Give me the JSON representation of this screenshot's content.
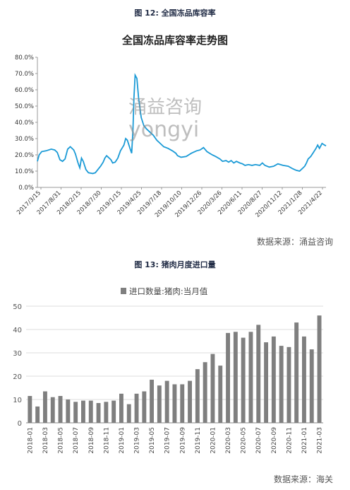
{
  "figure1": {
    "caption": "图 12:  全国冻品库容率",
    "title": "全国冻品库容率走势图",
    "source": "数据来源：涌益咨询",
    "watermark_cn": "涌益咨询",
    "watermark_en": "yongyi"
  },
  "figure2": {
    "caption": "图 13:  猪肉月度进口量",
    "source": "数据来源：海关"
  },
  "chart_data": [
    {
      "type": "line",
      "title": "全国冻品库容率走势图",
      "color": "#1a9ad6",
      "ylim": [
        0,
        80
      ],
      "y_ticks": [
        "0.0%",
        "10.0%",
        "20.0%",
        "30.0%",
        "40.0%",
        "50.0%",
        "60.0%",
        "70.0%",
        "80.0%"
      ],
      "x_tick_labels": [
        "2017/3/15",
        "2017/8/31",
        "2018/2/15",
        "2018/7/30",
        "2019/1/15",
        "2019/4/25",
        "2019/7/18",
        "2019/10/10",
        "2019/12/26",
        "2020/3/26",
        "2020/6/11",
        "2020/8/27",
        "2020/11/12",
        "2021/1/28",
        "2021/4/22"
      ],
      "points": [
        [
          0,
          16
        ],
        [
          0.1,
          20
        ],
        [
          0.25,
          22
        ],
        [
          0.5,
          22.5
        ],
        [
          0.8,
          23.5
        ],
        [
          1.0,
          23
        ],
        [
          1.15,
          21.5
        ],
        [
          1.3,
          17
        ],
        [
          1.45,
          16
        ],
        [
          1.6,
          17.5
        ],
        [
          1.75,
          23.5
        ],
        [
          1.9,
          25
        ],
        [
          2.1,
          23
        ],
        [
          2.2,
          20.5
        ],
        [
          2.35,
          15
        ],
        [
          2.45,
          12
        ],
        [
          2.55,
          18
        ],
        [
          2.65,
          16
        ],
        [
          2.8,
          11
        ],
        [
          2.95,
          9
        ],
        [
          3.2,
          8.5
        ],
        [
          3.35,
          9
        ],
        [
          3.5,
          11
        ],
        [
          3.65,
          13
        ],
        [
          3.8,
          15.5
        ],
        [
          3.9,
          18
        ],
        [
          4.0,
          19.5
        ],
        [
          4.1,
          18.5
        ],
        [
          4.25,
          17
        ],
        [
          4.35,
          15
        ],
        [
          4.5,
          15.5
        ],
        [
          4.65,
          18
        ],
        [
          4.8,
          22.5
        ],
        [
          5.0,
          26
        ],
        [
          5.1,
          30
        ],
        [
          5.2,
          29
        ],
        [
          5.35,
          24
        ],
        [
          5.45,
          21
        ],
        [
          5.52,
          35
        ],
        [
          5.58,
          55
        ],
        [
          5.65,
          69
        ],
        [
          5.75,
          67
        ],
        [
          5.85,
          55
        ],
        [
          6.0,
          43
        ],
        [
          6.15,
          38
        ],
        [
          6.3,
          36
        ],
        [
          6.5,
          34
        ],
        [
          6.7,
          32
        ],
        [
          6.9,
          29
        ],
        [
          7.1,
          27
        ],
        [
          7.3,
          25
        ],
        [
          7.55,
          24
        ],
        [
          7.8,
          22.5
        ],
        [
          8.0,
          21
        ],
        [
          8.1,
          19.5
        ],
        [
          8.3,
          18.5
        ],
        [
          8.6,
          19
        ],
        [
          8.9,
          21
        ],
        [
          9.2,
          22.5
        ],
        [
          9.4,
          23
        ],
        [
          9.6,
          24.5
        ],
        [
          9.8,
          22
        ],
        [
          10.1,
          20
        ],
        [
          10.3,
          19
        ],
        [
          10.55,
          17.5
        ],
        [
          10.7,
          16
        ],
        [
          10.9,
          16.5
        ],
        [
          11.05,
          15.5
        ],
        [
          11.2,
          16.5
        ],
        [
          11.35,
          15
        ],
        [
          11.5,
          16
        ],
        [
          11.7,
          15
        ],
        [
          11.85,
          14.5
        ],
        [
          12.0,
          13.5
        ],
        [
          12.2,
          14
        ],
        [
          12.4,
          13.5
        ],
        [
          12.6,
          14
        ],
        [
          12.85,
          13.5
        ],
        [
          13.0,
          15
        ],
        [
          13.15,
          13.5
        ],
        [
          13.4,
          12.5
        ],
        [
          13.65,
          13
        ],
        [
          13.9,
          14.5
        ],
        [
          14.2,
          13.5
        ],
        [
          14.5,
          13
        ],
        [
          14.75,
          11.5
        ],
        [
          14.95,
          10.5
        ],
        [
          15.15,
          10
        ],
        [
          15.3,
          11.5
        ],
        [
          15.45,
          13
        ],
        [
          15.55,
          15
        ],
        [
          15.65,
          17.5
        ],
        [
          15.8,
          19
        ],
        [
          15.95,
          21.5
        ],
        [
          16.1,
          24
        ],
        [
          16.2,
          26
        ],
        [
          16.3,
          24
        ],
        [
          16.45,
          27
        ],
        [
          16.6,
          26
        ],
        [
          16.68,
          25.5
        ]
      ],
      "x_max": 16.68
    },
    {
      "type": "bar",
      "legend": "进口数量:猪肉:当月值",
      "color": "#7f7f7f",
      "ylim": [
        0,
        50
      ],
      "y_ticks": [
        "0",
        "10",
        "20",
        "30",
        "40",
        "50"
      ],
      "categories": [
        "2018-01",
        "2018-02",
        "2018-03",
        "2018-04",
        "2018-05",
        "2018-06",
        "2018-07",
        "2018-08",
        "2018-09",
        "2018-10",
        "2018-11",
        "2018-12",
        "2019-01",
        "2019-02",
        "2019-03",
        "2019-04",
        "2019-05",
        "2019-06",
        "2019-07",
        "2019-08",
        "2019-09",
        "2019-10",
        "2019-11",
        "2019-12",
        "2020-01",
        "2020-02",
        "2020-03",
        "2020-04",
        "2020-05",
        "2020-06",
        "2020-07",
        "2020-08",
        "2020-09",
        "2020-10",
        "2020-11",
        "2020-12",
        "2021-01",
        "2021-02",
        "2021-03"
      ],
      "x_tick_labels": [
        "2018-01",
        "2018-03",
        "2018-05",
        "2018-07",
        "2018-09",
        "2018-11",
        "2019-01",
        "2019-03",
        "2019-05",
        "2019-07",
        "2019-09",
        "2019-11",
        "2020-01",
        "2020-03",
        "2020-05",
        "2020-07",
        "2020-09",
        "2020-11",
        "2021-01",
        "2021-03"
      ],
      "values": [
        11.5,
        7,
        13.5,
        11,
        11.5,
        10,
        9,
        9.5,
        9.5,
        8.5,
        9,
        9.5,
        12.5,
        8,
        12.5,
        13.5,
        18.5,
        16,
        18,
        16.5,
        16.5,
        18,
        23,
        26,
        29.5,
        24.5,
        38.5,
        39,
        36.5,
        39,
        42,
        34.5,
        37,
        33,
        32.5,
        43,
        37,
        31.5,
        46
      ]
    }
  ]
}
